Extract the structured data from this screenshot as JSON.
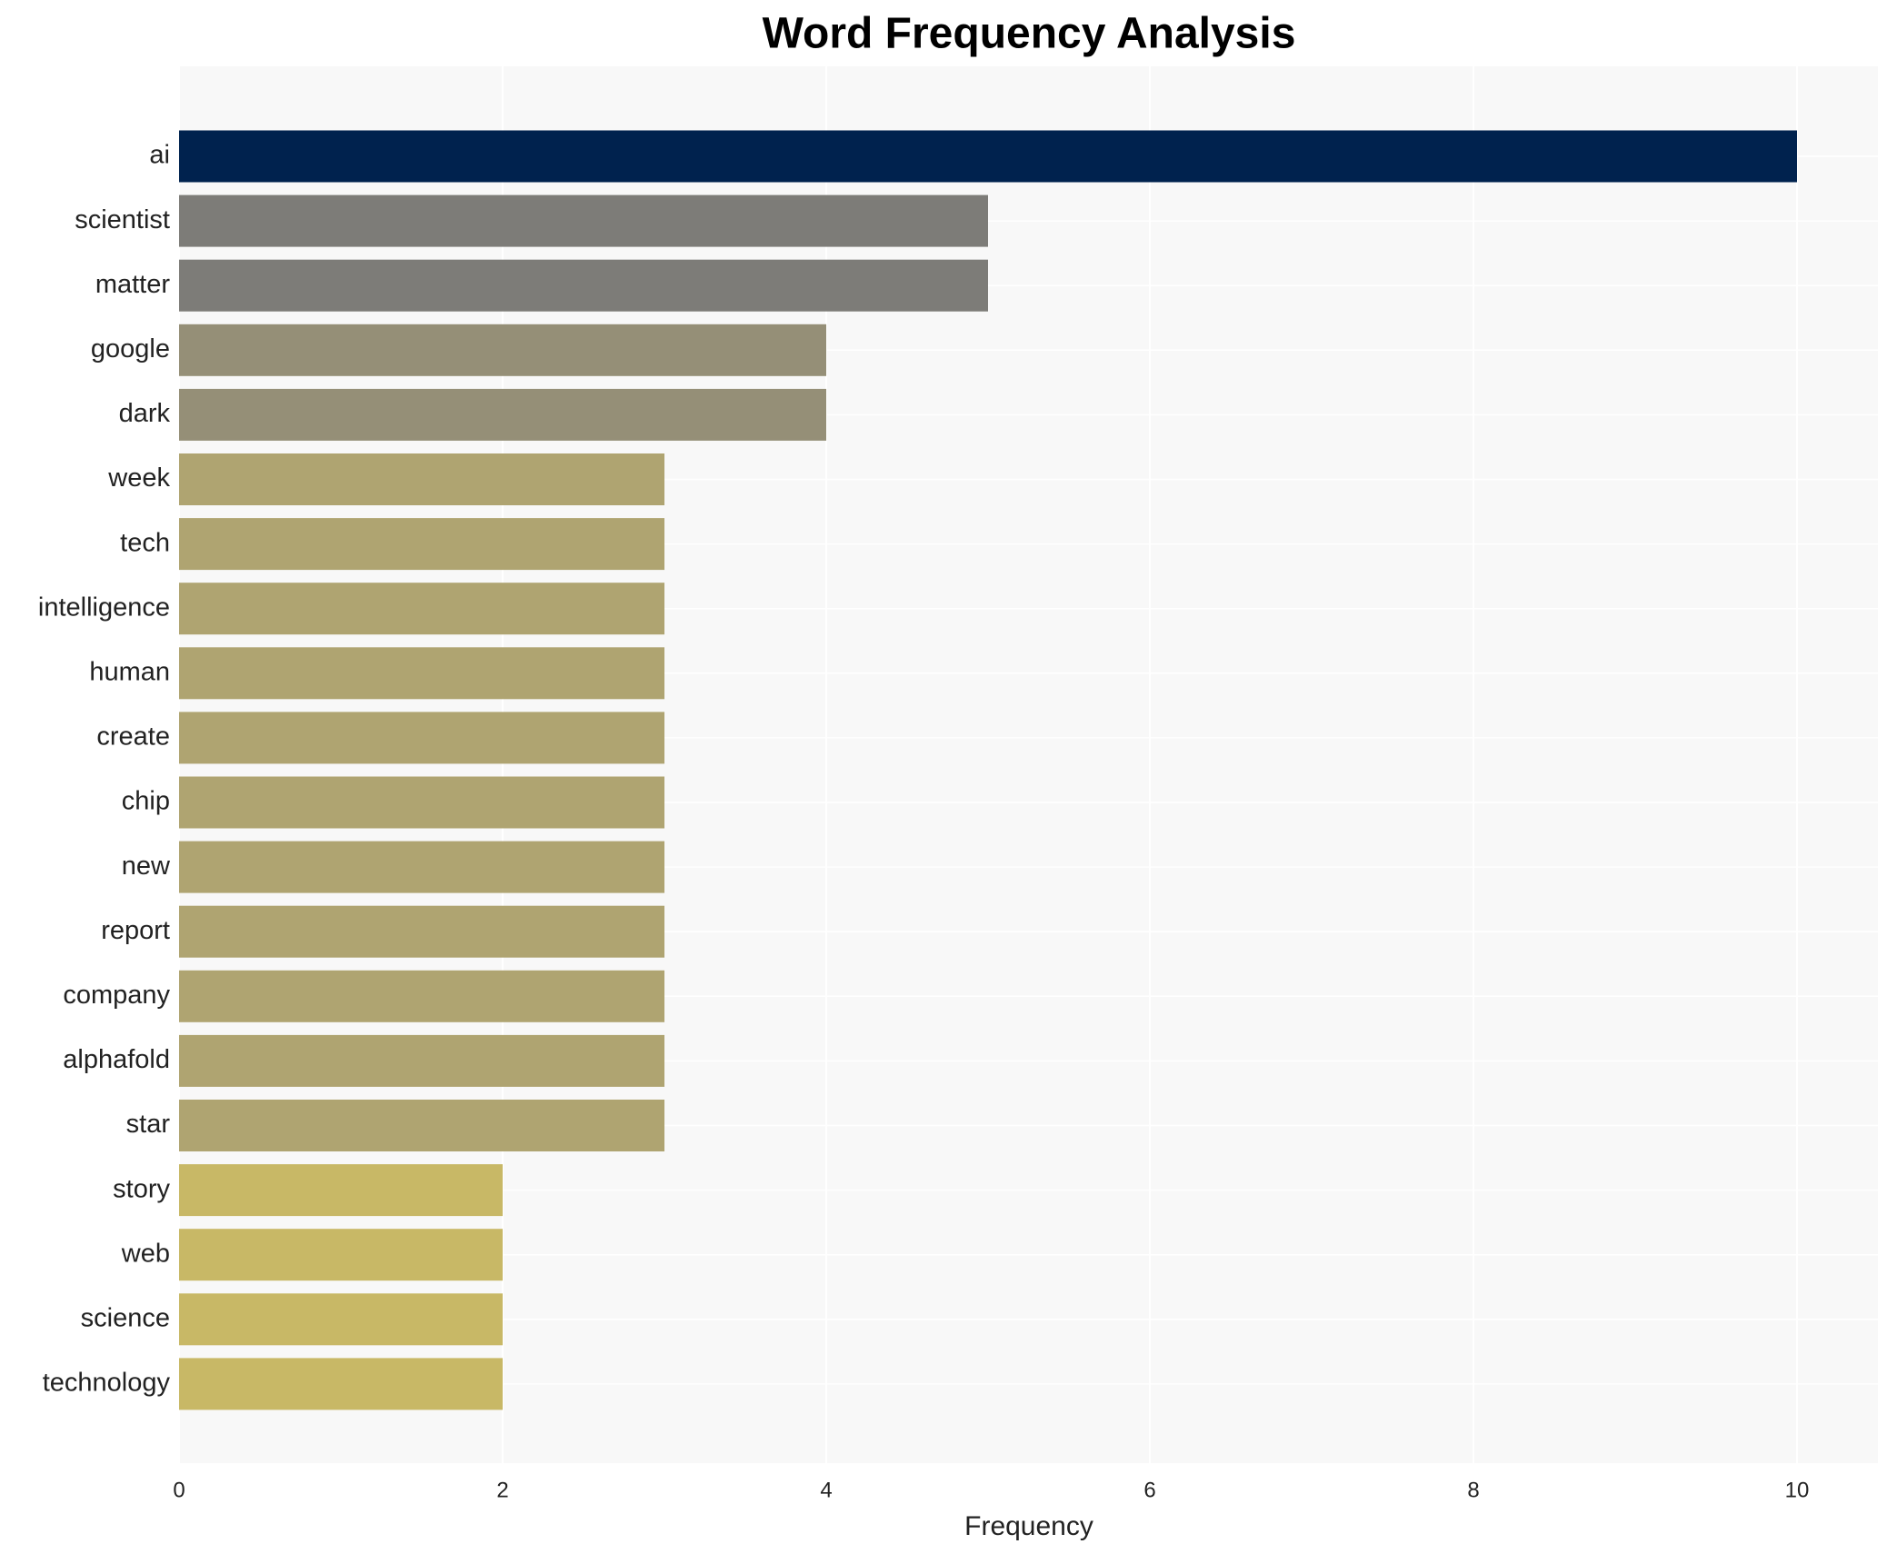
{
  "chart_data": {
    "type": "barh",
    "title": "Word Frequency Analysis",
    "xlabel": "Frequency",
    "categories": [
      "ai",
      "scientist",
      "matter",
      "google",
      "dark",
      "week",
      "tech",
      "intelligence",
      "human",
      "create",
      "chip",
      "new",
      "report",
      "company",
      "alphafold",
      "star",
      "story",
      "web",
      "science",
      "technology"
    ],
    "values": [
      10,
      5,
      5,
      4,
      4,
      3,
      3,
      3,
      3,
      3,
      3,
      3,
      3,
      3,
      3,
      3,
      2,
      2,
      2,
      2
    ],
    "colors": [
      "#00224e",
      "#7d7c78",
      "#7d7c78",
      "#958f77",
      "#958f77",
      "#afa471",
      "#afa471",
      "#afa471",
      "#afa471",
      "#afa471",
      "#afa471",
      "#afa471",
      "#afa471",
      "#afa471",
      "#afa471",
      "#afa471",
      "#c8b866",
      "#c8b866",
      "#c8b866",
      "#c8b866"
    ],
    "xlim": [
      0,
      10.5
    ],
    "xticks": [
      0,
      2,
      4,
      6,
      8,
      10
    ],
    "grid": true
  }
}
